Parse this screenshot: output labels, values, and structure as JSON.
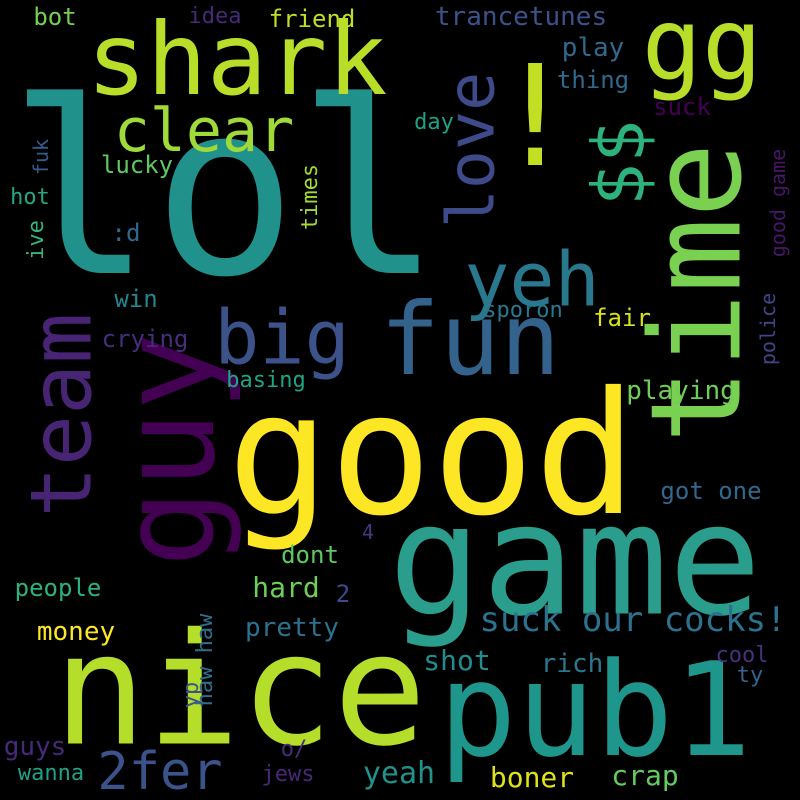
{
  "words": [
    {
      "text": "lol",
      "color": "#21918c"
    },
    {
      "text": "good",
      "color": "#fde725"
    },
    {
      "text": "game",
      "color": "#2a9d8c"
    },
    {
      "text": "nice",
      "color": "#b5de2b"
    },
    {
      "text": "pub1",
      "color": "#1f968b"
    },
    {
      "text": "shark",
      "color": "#b8de29"
    },
    {
      "text": "guy",
      "color": "#440154"
    },
    {
      "text": "time",
      "color": "#7ad151"
    },
    {
      "text": "!",
      "color": "#c2df23"
    },
    {
      "text": "gg",
      "color": "#b8de29"
    },
    {
      "text": "fun",
      "color": "#33628d"
    },
    {
      "text": "big",
      "color": "#3b528b"
    },
    {
      "text": "team",
      "color": "#482475"
    },
    {
      "text": "yeh",
      "color": "#2a788e"
    },
    {
      "text": "$$",
      "color": "#2db27d"
    },
    {
      "text": "love",
      "color": "#3e4a89"
    },
    {
      "text": "clear",
      "color": "#a0da39"
    },
    {
      "text": "2fer",
      "color": "#3b528b"
    },
    {
      "text": "suck our cocks!",
      "color": "#2c728e"
    },
    {
      "text": "trancetunes",
      "color": "#3b528b"
    },
    {
      "text": "bot",
      "color": "#75d054"
    },
    {
      "text": "idea",
      "color": "#482878"
    },
    {
      "text": "friend",
      "color": "#bddf26"
    },
    {
      "text": "play",
      "color": "#31688e"
    },
    {
      "text": "thing",
      "color": "#31688e"
    },
    {
      "text": "suck",
      "color": "#440154"
    },
    {
      "text": "day",
      "color": "#1fa187"
    },
    {
      "text": "lucky",
      "color": "#5ec962"
    },
    {
      "text": "fuk",
      "color": "#365c8d"
    },
    {
      "text": "hot",
      "color": "#22a884"
    },
    {
      "text": "ive",
      "color": "#35b779"
    },
    {
      "text": ":d",
      "color": "#31688e"
    },
    {
      "text": "times",
      "color": "#a2da37"
    },
    {
      "text": "good game",
      "color": "#481668"
    },
    {
      "text": "police",
      "color": "#414487"
    },
    {
      "text": "win",
      "color": "#24868e"
    },
    {
      "text": "crying",
      "color": "#472d7b"
    },
    {
      "text": "sporon",
      "color": "#2a788e"
    },
    {
      "text": "fair",
      "color": "#d8e219"
    },
    {
      "text": "basing",
      "color": "#20a486"
    },
    {
      "text": "playing",
      "color": "#6ece58"
    },
    {
      "text": "got one",
      "color": "#31688e"
    },
    {
      "text": "dont",
      "color": "#5ec962"
    },
    {
      "text": "4",
      "color": "#443983"
    },
    {
      "text": "hard",
      "color": "#6ece58"
    },
    {
      "text": "2",
      "color": "#3e4989"
    },
    {
      "text": "people",
      "color": "#2db27d"
    },
    {
      "text": "money",
      "color": "#fde725"
    },
    {
      "text": "haw haw",
      "color": "#2e6f8e"
    },
    {
      "text": "pretty",
      "color": "#2c728e"
    },
    {
      "text": "shot",
      "color": "#228c8d"
    },
    {
      "text": "rich",
      "color": "#2a788e"
    },
    {
      "text": "cool",
      "color": "#46317e"
    },
    {
      "text": "ty",
      "color": "#32658e"
    },
    {
      "text": "yp",
      "color": "#3b528b"
    },
    {
      "text": "guys",
      "color": "#482878"
    },
    {
      "text": "o/",
      "color": "#472c7a"
    },
    {
      "text": "wanna",
      "color": "#1fa188"
    },
    {
      "text": "jews",
      "color": "#482878"
    },
    {
      "text": "yeah",
      "color": "#21918c"
    },
    {
      "text": "boner",
      "color": "#dde318"
    },
    {
      "text": "crap",
      "color": "#63cb5f"
    }
  ]
}
